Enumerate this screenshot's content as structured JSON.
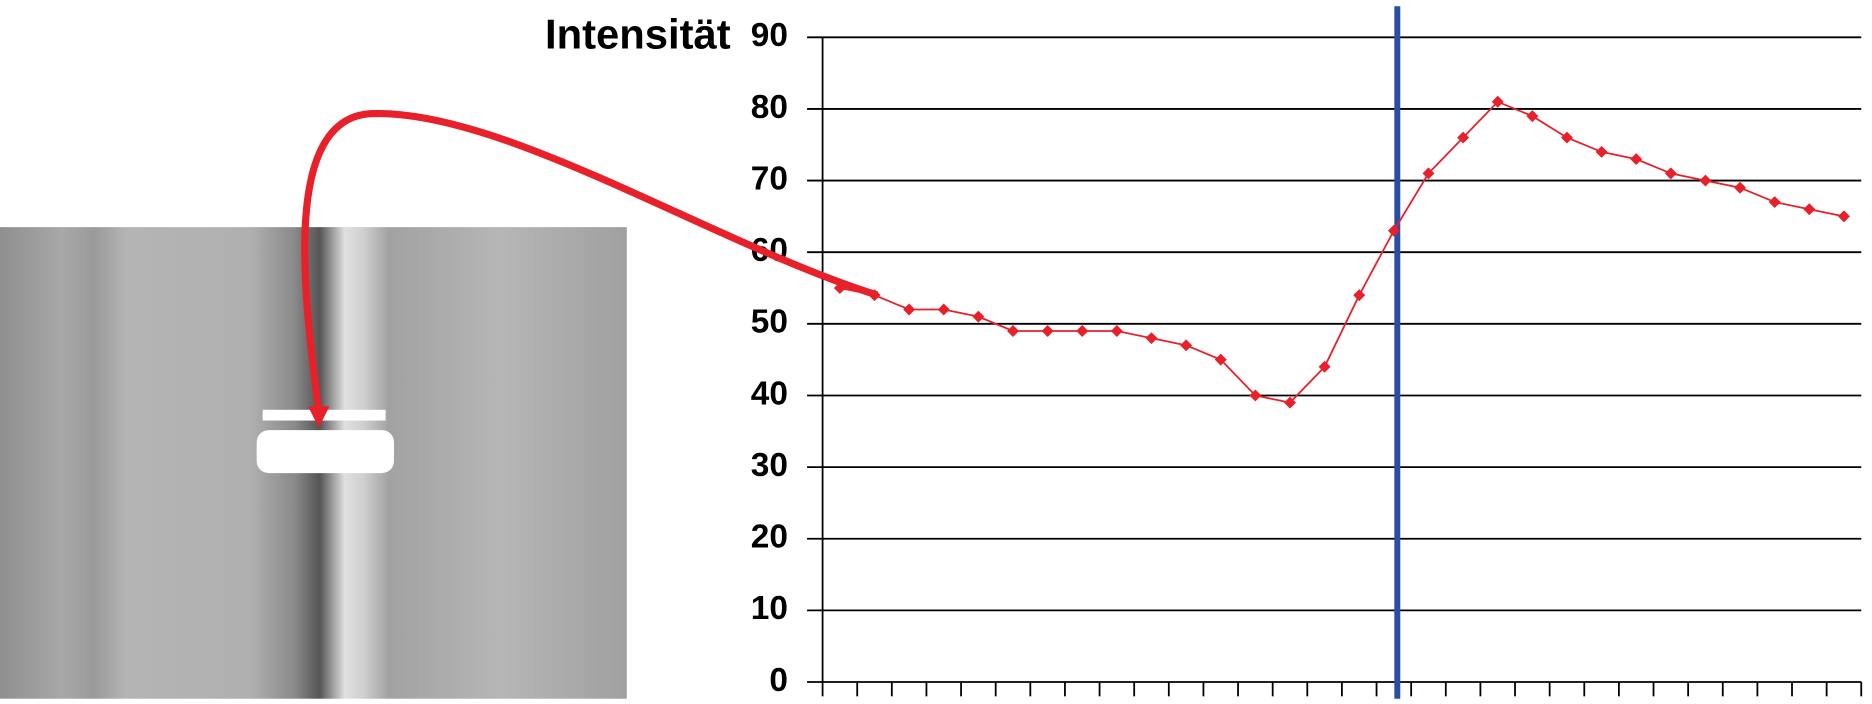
{
  "chart_data": {
    "type": "line",
    "ylabel": "Intensität",
    "x": [
      1,
      2,
      3,
      4,
      5,
      6,
      7,
      8,
      9,
      10,
      11,
      12,
      13,
      14,
      15,
      16,
      17,
      18,
      19,
      20,
      21,
      22,
      23,
      24,
      25,
      26,
      27,
      28,
      29,
      30
    ],
    "series": [
      {
        "color": "#e8202a",
        "values": [
          55,
          54,
          52,
          52,
          51,
          49,
          49,
          49,
          49,
          48,
          47,
          45,
          40,
          39,
          44,
          54,
          63,
          71,
          76,
          81,
          79,
          76,
          74,
          73,
          71,
          70,
          69,
          67,
          66,
          65
        ]
      }
    ],
    "xlim": [
      0.5,
      30.5
    ],
    "xticks": [
      0.5,
      1.5,
      2.5,
      3.5,
      4.5,
      5.5,
      6.5,
      7.5,
      8.5,
      9.5,
      10.5,
      11.5,
      12.5,
      13.5,
      14.5,
      15.5,
      16.5,
      17.5,
      18.5,
      19.5,
      20.5,
      21.5,
      22.5,
      23.5,
      24.5,
      25.5,
      26.5,
      27.5,
      28.5,
      29.5,
      30.5
    ],
    "ylim": [
      0,
      90
    ],
    "yticks": [
      0,
      10,
      20,
      30,
      40,
      50,
      60,
      70,
      80,
      90
    ],
    "grid": true,
    "vertical_line": {
      "x": 17.1,
      "color": "#2a4ea0"
    }
  }
}
